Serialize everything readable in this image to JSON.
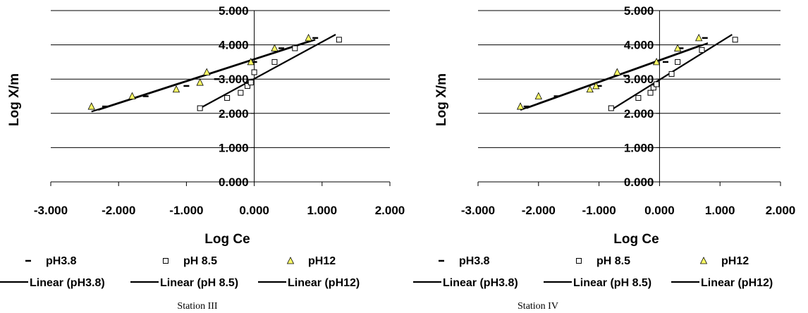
{
  "chart_data": [
    {
      "type": "scatter",
      "caption": "Station III",
      "xlabel": "Log Ce",
      "ylabel": "Log X/m",
      "xlim": [
        -3,
        2
      ],
      "ylim": [
        0,
        5
      ],
      "x_ticks": [
        "-3.000",
        "-2.000",
        "-1.000",
        "0.000",
        "1.000",
        "2.000"
      ],
      "y_ticks": [
        "0.000",
        "1.000",
        "2.000",
        "3.000",
        "4.000",
        "5.000"
      ],
      "grid": "horizontal",
      "series": [
        {
          "name": "pH3.8",
          "marker": "dash",
          "points": [
            [
              -2.2,
              2.2
            ],
            [
              -1.6,
              2.5
            ],
            [
              -1.0,
              2.8
            ],
            [
              -0.55,
              3.0
            ],
            [
              0.0,
              3.5
            ],
            [
              0.4,
              3.9
            ],
            [
              0.9,
              4.2
            ]
          ]
        },
        {
          "name": "pH 8.5",
          "marker": "square",
          "points": [
            [
              -0.8,
              2.15
            ],
            [
              -0.4,
              2.45
            ],
            [
              -0.2,
              2.6
            ],
            [
              -0.1,
              2.8
            ],
            [
              -0.05,
              2.9
            ],
            [
              0.0,
              3.2
            ],
            [
              0.3,
              3.5
            ],
            [
              0.6,
              3.9
            ],
            [
              1.25,
              4.15
            ]
          ]
        },
        {
          "name": "pH12",
          "marker": "triangle",
          "points": [
            [
              -2.4,
              2.2
            ],
            [
              -1.8,
              2.5
            ],
            [
              -1.15,
              2.7
            ],
            [
              -0.8,
              2.9
            ],
            [
              -0.7,
              3.2
            ],
            [
              -0.05,
              3.5
            ],
            [
              0.3,
              3.9
            ],
            [
              0.8,
              4.2
            ]
          ]
        }
      ],
      "trendlines": [
        {
          "name": "Linear (pH3.8)",
          "x": [
            -2.3,
            0.9
          ],
          "y": [
            2.1,
            4.15
          ]
        },
        {
          "name": "Linear (pH 8.5)",
          "x": [
            -0.8,
            1.2
          ],
          "y": [
            2.15,
            4.3
          ]
        },
        {
          "name": "Linear (pH12)",
          "x": [
            -2.4,
            0.8
          ],
          "y": [
            2.05,
            4.1
          ]
        }
      ],
      "legend": [
        "pH3.8",
        "pH 8.5",
        "pH12",
        "Linear (pH3.8)",
        "Linear (pH 8.5)",
        "Linear (pH12)"
      ]
    },
    {
      "type": "scatter",
      "caption": "Station IV",
      "xlabel": "Log Ce",
      "ylabel": "Log X/m",
      "xlim": [
        -3,
        2
      ],
      "ylim": [
        0,
        5
      ],
      "x_ticks": [
        "-3.000",
        "-2.000",
        "-1.000",
        "0.000",
        "1.000",
        "2.000"
      ],
      "y_ticks": [
        "0.000",
        "1.000",
        "2.000",
        "3.000",
        "4.000",
        "5.000"
      ],
      "grid": "horizontal",
      "series": [
        {
          "name": "pH3.8",
          "marker": "dash",
          "points": [
            [
              -2.2,
              2.2
            ],
            [
              -1.7,
              2.5
            ],
            [
              -1.0,
              2.8
            ],
            [
              -0.55,
              3.1
            ],
            [
              0.1,
              3.5
            ],
            [
              0.35,
              3.9
            ],
            [
              0.75,
              4.2
            ]
          ]
        },
        {
          "name": "pH 8.5",
          "marker": "square",
          "points": [
            [
              -0.8,
              2.15
            ],
            [
              -0.35,
              2.45
            ],
            [
              -0.15,
              2.6
            ],
            [
              -0.1,
              2.75
            ],
            [
              -0.05,
              2.85
            ],
            [
              0.2,
              3.15
            ],
            [
              0.3,
              3.5
            ],
            [
              0.7,
              3.85
            ],
            [
              1.25,
              4.15
            ]
          ]
        },
        {
          "name": "pH12",
          "marker": "triangle",
          "points": [
            [
              -2.3,
              2.2
            ],
            [
              -2.0,
              2.5
            ],
            [
              -1.15,
              2.7
            ],
            [
              -1.05,
              2.8
            ],
            [
              -0.7,
              3.2
            ],
            [
              -0.05,
              3.5
            ],
            [
              0.3,
              3.9
            ],
            [
              0.65,
              4.2
            ]
          ]
        }
      ],
      "trendlines": [
        {
          "name": "Linear (pH3.8)",
          "x": [
            -2.2,
            0.8
          ],
          "y": [
            2.15,
            4.05
          ]
        },
        {
          "name": "Linear (pH 8.5)",
          "x": [
            -0.8,
            1.2
          ],
          "y": [
            2.1,
            4.3
          ]
        },
        {
          "name": "Linear (pH12)",
          "x": [
            -2.3,
            0.7
          ],
          "y": [
            2.1,
            4.0
          ]
        }
      ],
      "legend": [
        "pH3.8",
        "pH 8.5",
        "pH12",
        "Linear (pH3.8)",
        "Linear (pH 8.5)",
        "Linear (pH12)"
      ]
    }
  ],
  "colors": {
    "axis": "#000000",
    "grid": "#000000",
    "triangle_fill": "#ffff66",
    "line": "#000000"
  }
}
